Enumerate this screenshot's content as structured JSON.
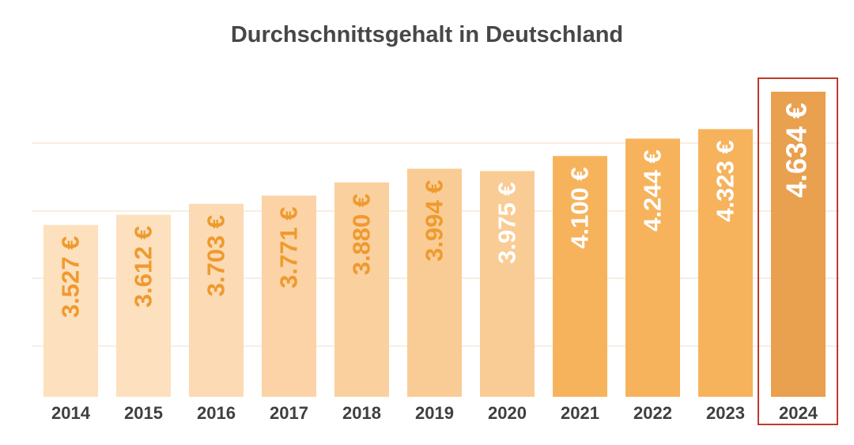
{
  "chart_data": {
    "type": "bar",
    "title": "Durchschnittsgehalt in Deutschland",
    "categories": [
      "2014",
      "2015",
      "2016",
      "2017",
      "2018",
      "2019",
      "2020",
      "2021",
      "2022",
      "2023",
      "2024"
    ],
    "values": [
      3527,
      3612,
      3703,
      3771,
      3880,
      3994,
      3975,
      4100,
      4244,
      4323,
      4634
    ],
    "data_labels": [
      "3.527 €",
      "3.612 €",
      "3.703 €",
      "3.771 €",
      "3.880 €",
      "3.994 €",
      "3.975 €",
      "4.100 €",
      "4.244 €",
      "4.323 €",
      "4.634 €"
    ],
    "ylim": [
      2000,
      4800
    ],
    "grid": true,
    "highlighted_category": "2024",
    "colors": {
      "light_bar": "#fde0bd",
      "mid_bar": "#f9c98a",
      "dark_bar": "#f6b35c",
      "highlight_bar": "#e9a04f",
      "label_orange": "#ef9a2e",
      "label_white": "#ffffff",
      "highlight_border": "#c0392b",
      "gridline": "#f0dcc3"
    },
    "bar_colors": [
      "#fde0bd",
      "#fde0bd",
      "#fcdab3",
      "#fbd3a6",
      "#fad09f",
      "#f9cc95",
      "#f9cc95",
      "#f6b35c",
      "#f6b35c",
      "#f6b35c",
      "#e9a04f"
    ],
    "label_colors": [
      "#ef9a2e",
      "#ef9a2e",
      "#ef9a2e",
      "#ef9a2e",
      "#ef9a2e",
      "#ef9a2e",
      "#ffffff",
      "#ffffff",
      "#ffffff",
      "#ffffff",
      "#ffffff"
    ]
  }
}
